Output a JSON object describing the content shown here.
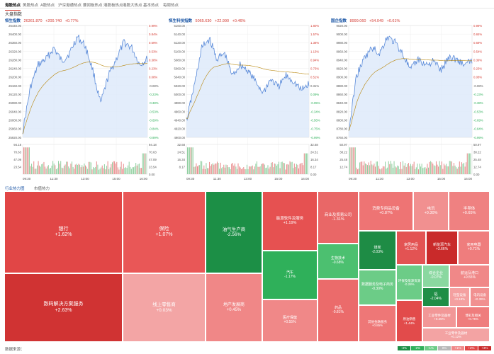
{
  "nav": {
    "tabs": [
      "港股热点",
      "美股热点",
      "A股热点",
      "沪深港通热点",
      "要闻板热点",
      "港股板热点",
      "港股大热点",
      "基本热点",
      "每周热点"
    ]
  },
  "section": {
    "title": "大盘指数"
  },
  "charts": [
    {
      "name": "恒生指数",
      "price": "26361.870",
      "change": "+200.740",
      "pct": "+0.77%",
      "y_left": [
        "26440.00",
        "26400.00",
        "26360.00",
        "26320.00",
        "26280.00",
        "26240.00",
        "26200.00",
        "26160.00",
        "26120.00",
        "26080.00",
        "26040.00",
        "26000.00",
        "25960.00",
        "25920.00"
      ],
      "y_right": [
        "0.99%",
        "0.84%",
        "0.69%",
        "0.53%",
        "0.38%",
        "0.23%",
        "0.08%",
        "-0.08%",
        "-0.23%",
        "-0.38%",
        "-0.53%",
        "-0.69%",
        "-0.84%",
        "-0.99%"
      ],
      "vol_left": [
        "94.18",
        "70.63",
        "47.09",
        "23.54"
      ],
      "vol_right": [
        "94.18",
        "70.63",
        "47.09",
        "23.54",
        "0.00"
      ],
      "x_labels": [
        "09:30",
        "11:30",
        "13:00",
        "15:00",
        "16:00"
      ]
    },
    {
      "name": "恒生科技指数",
      "price": "5065.630",
      "change": "+22.990",
      "pct": "+0.46%",
      "y_left": [
        "5160.00",
        "5140.00",
        "5120.00",
        "5100.00",
        "5080.00",
        "5060.00",
        "5040.00",
        "5020.00",
        "5000.00",
        "4980.00",
        "4960.00",
        "4940.00",
        "4920.00",
        "4900.00"
      ],
      "y_right": [
        "1.80%",
        "1.57%",
        "1.38%",
        "1.13%",
        "0.94%",
        "0.73%",
        "0.51%",
        "0.31%",
        "0.09%",
        "-0.05%",
        "-0.34%",
        "-0.56%",
        "-0.75%",
        "-0.99%"
      ],
      "vol_left": [
        "32.68",
        "24.51",
        "16.34",
        "8.17"
      ],
      "vol_right": [
        "32.68",
        "24.51",
        "16.34",
        "8.17",
        "0.00"
      ],
      "x_labels": [
        "09:30",
        "11:30",
        "13:00",
        "15:00",
        "16:00"
      ]
    },
    {
      "name": "国企指数",
      "price": "8999.060",
      "change": "+54.049",
      "pct": "+0.61%",
      "y_left": [
        "9020.00",
        "9000.00",
        "8980.00",
        "8960.00",
        "8940.00",
        "8920.00",
        "8900.00",
        "8880.00",
        "8860.00",
        "8840.00",
        "8820.00",
        "8800.00",
        "8780.00",
        "8760.00"
      ],
      "y_right": [
        "0.99%",
        "0.84%",
        "0.69%",
        "0.54%",
        "0.39%",
        "0.23%",
        "0.08%",
        "-0.08%",
        "-0.23%",
        "-0.38%",
        "-0.53%",
        "-0.69%",
        "-0.84%",
        "-0.99%"
      ],
      "vol_left": [
        "50.97",
        "38.22",
        "25.48",
        "12.74"
      ],
      "vol_right": [
        "50.97",
        "38.22",
        "25.48",
        "12.74",
        "0.00"
      ],
      "x_labels": [
        "09:30",
        "11:30",
        "13:00",
        "15:00",
        "16:00"
      ]
    }
  ],
  "heatmap_tabs": [
    "行业热力图",
    "市值热力"
  ],
  "tiles": [
    {
      "name": "银行",
      "value": "+1.62%",
      "color": "#e14646"
    },
    {
      "name": "保险",
      "value": "+1.07%",
      "color": "#e95757"
    },
    {
      "name": "油气生产商",
      "value": "-2.56%",
      "color": "#1c8f46"
    },
    {
      "name": "能源软件及服务",
      "value": "+1.19%",
      "color": "#e65151"
    },
    {
      "name": "商业及贸易公司",
      "value": "-1.31%",
      "color": "#e96767"
    },
    {
      "name": "消费专用品设备",
      "value": "+0.87%",
      "color": "#ee7474"
    },
    {
      "name": "电讯",
      "value": "+0.30%",
      "color": "#f19090"
    },
    {
      "name": "半导体",
      "value": "+0.65%",
      "color": "#ef8181"
    },
    {
      "name": "煤炭",
      "value": "-2.03%",
      "color": "#1e8c45"
    },
    {
      "name": "家居用品",
      "value": "+1.12%",
      "color": "#e35353"
    },
    {
      "name": "新能源汽车",
      "value": "+3.66%",
      "color": "#c92a2a"
    },
    {
      "name": "家用电器",
      "value": "+0.71%",
      "color": "#ef7d7d"
    },
    {
      "name": "汽车",
      "value": "-1.17%",
      "color": "#2fb05a"
    },
    {
      "name": "生物技术",
      "value": "-0.68%",
      "color": "#4cc070"
    },
    {
      "name": "数据服务及电子商务",
      "value": "-0.30%",
      "color": "#6ccc87"
    },
    {
      "name": "环保及能源资源",
      "value": "-0.28%",
      "color": "#6ccc87"
    },
    {
      "name": "铝",
      "value": "-2.04%",
      "color": "#1f8e46"
    },
    {
      "name": "综合企业",
      "value": "-0.07%",
      "color": "#8ad8a0"
    },
    {
      "name": "航运及港口",
      "value": "+0.55%",
      "color": "#f08888"
    },
    {
      "name": "轻型设备",
      "value": "+0.18%",
      "color": "#f4a0a0"
    },
    {
      "name": "电讯设备",
      "value": "+0.39%",
      "color": "#f19090"
    },
    {
      "name": "数码解决方案服务",
      "value": "+2.63%",
      "color": "#d03333"
    },
    {
      "name": "线上零售商",
      "value": "+0.03%",
      "color": "#f3a5a5"
    },
    {
      "name": "地产发展商",
      "value": "+0.45%",
      "color": "#f08787"
    },
    {
      "name": "药品",
      "value": "-0.81%",
      "color": "#eb6b6b"
    },
    {
      "name": "医疗保健",
      "value": "+0.55%",
      "color": "#f08888"
    },
    {
      "name": "工业零件及器材",
      "value": "+0.25%",
      "color": "#f29797"
    },
    {
      "name": "原油销售",
      "value": "+1.44%",
      "color": "#e24b4b"
    },
    {
      "name": "其他金融服务",
      "value": "+0.85%",
      "color": "#ee7777"
    },
    {
      "name": "博彩及相关",
      "value": "+0.75%",
      "color": "#ef7d7d"
    },
    {
      "name": "工业零件及器材",
      "value": "+0.12%",
      "color": "#f3a3a3"
    }
  ],
  "footer": {
    "text": "数据来源：",
    "legend": [
      {
        "label": "-3%",
        "color": "#1c8f46"
      },
      {
        "label": "-2%",
        "color": "#2fb05a"
      },
      {
        "label": "-1%",
        "color": "#6ccc87"
      },
      {
        "label": "0%",
        "color": "#b8b8b8"
      },
      {
        "label": "+1%",
        "color": "#f08888"
      },
      {
        "label": "+2%",
        "color": "#e14646"
      },
      {
        "label": "+3%",
        "color": "#c92a2a"
      }
    ]
  },
  "colors": {
    "accent": "#d43c33",
    "link": "#1a55a5",
    "line": "#5b8bd9",
    "avg": "#b8860b",
    "up": "#e14646",
    "down": "#2fb05a"
  }
}
